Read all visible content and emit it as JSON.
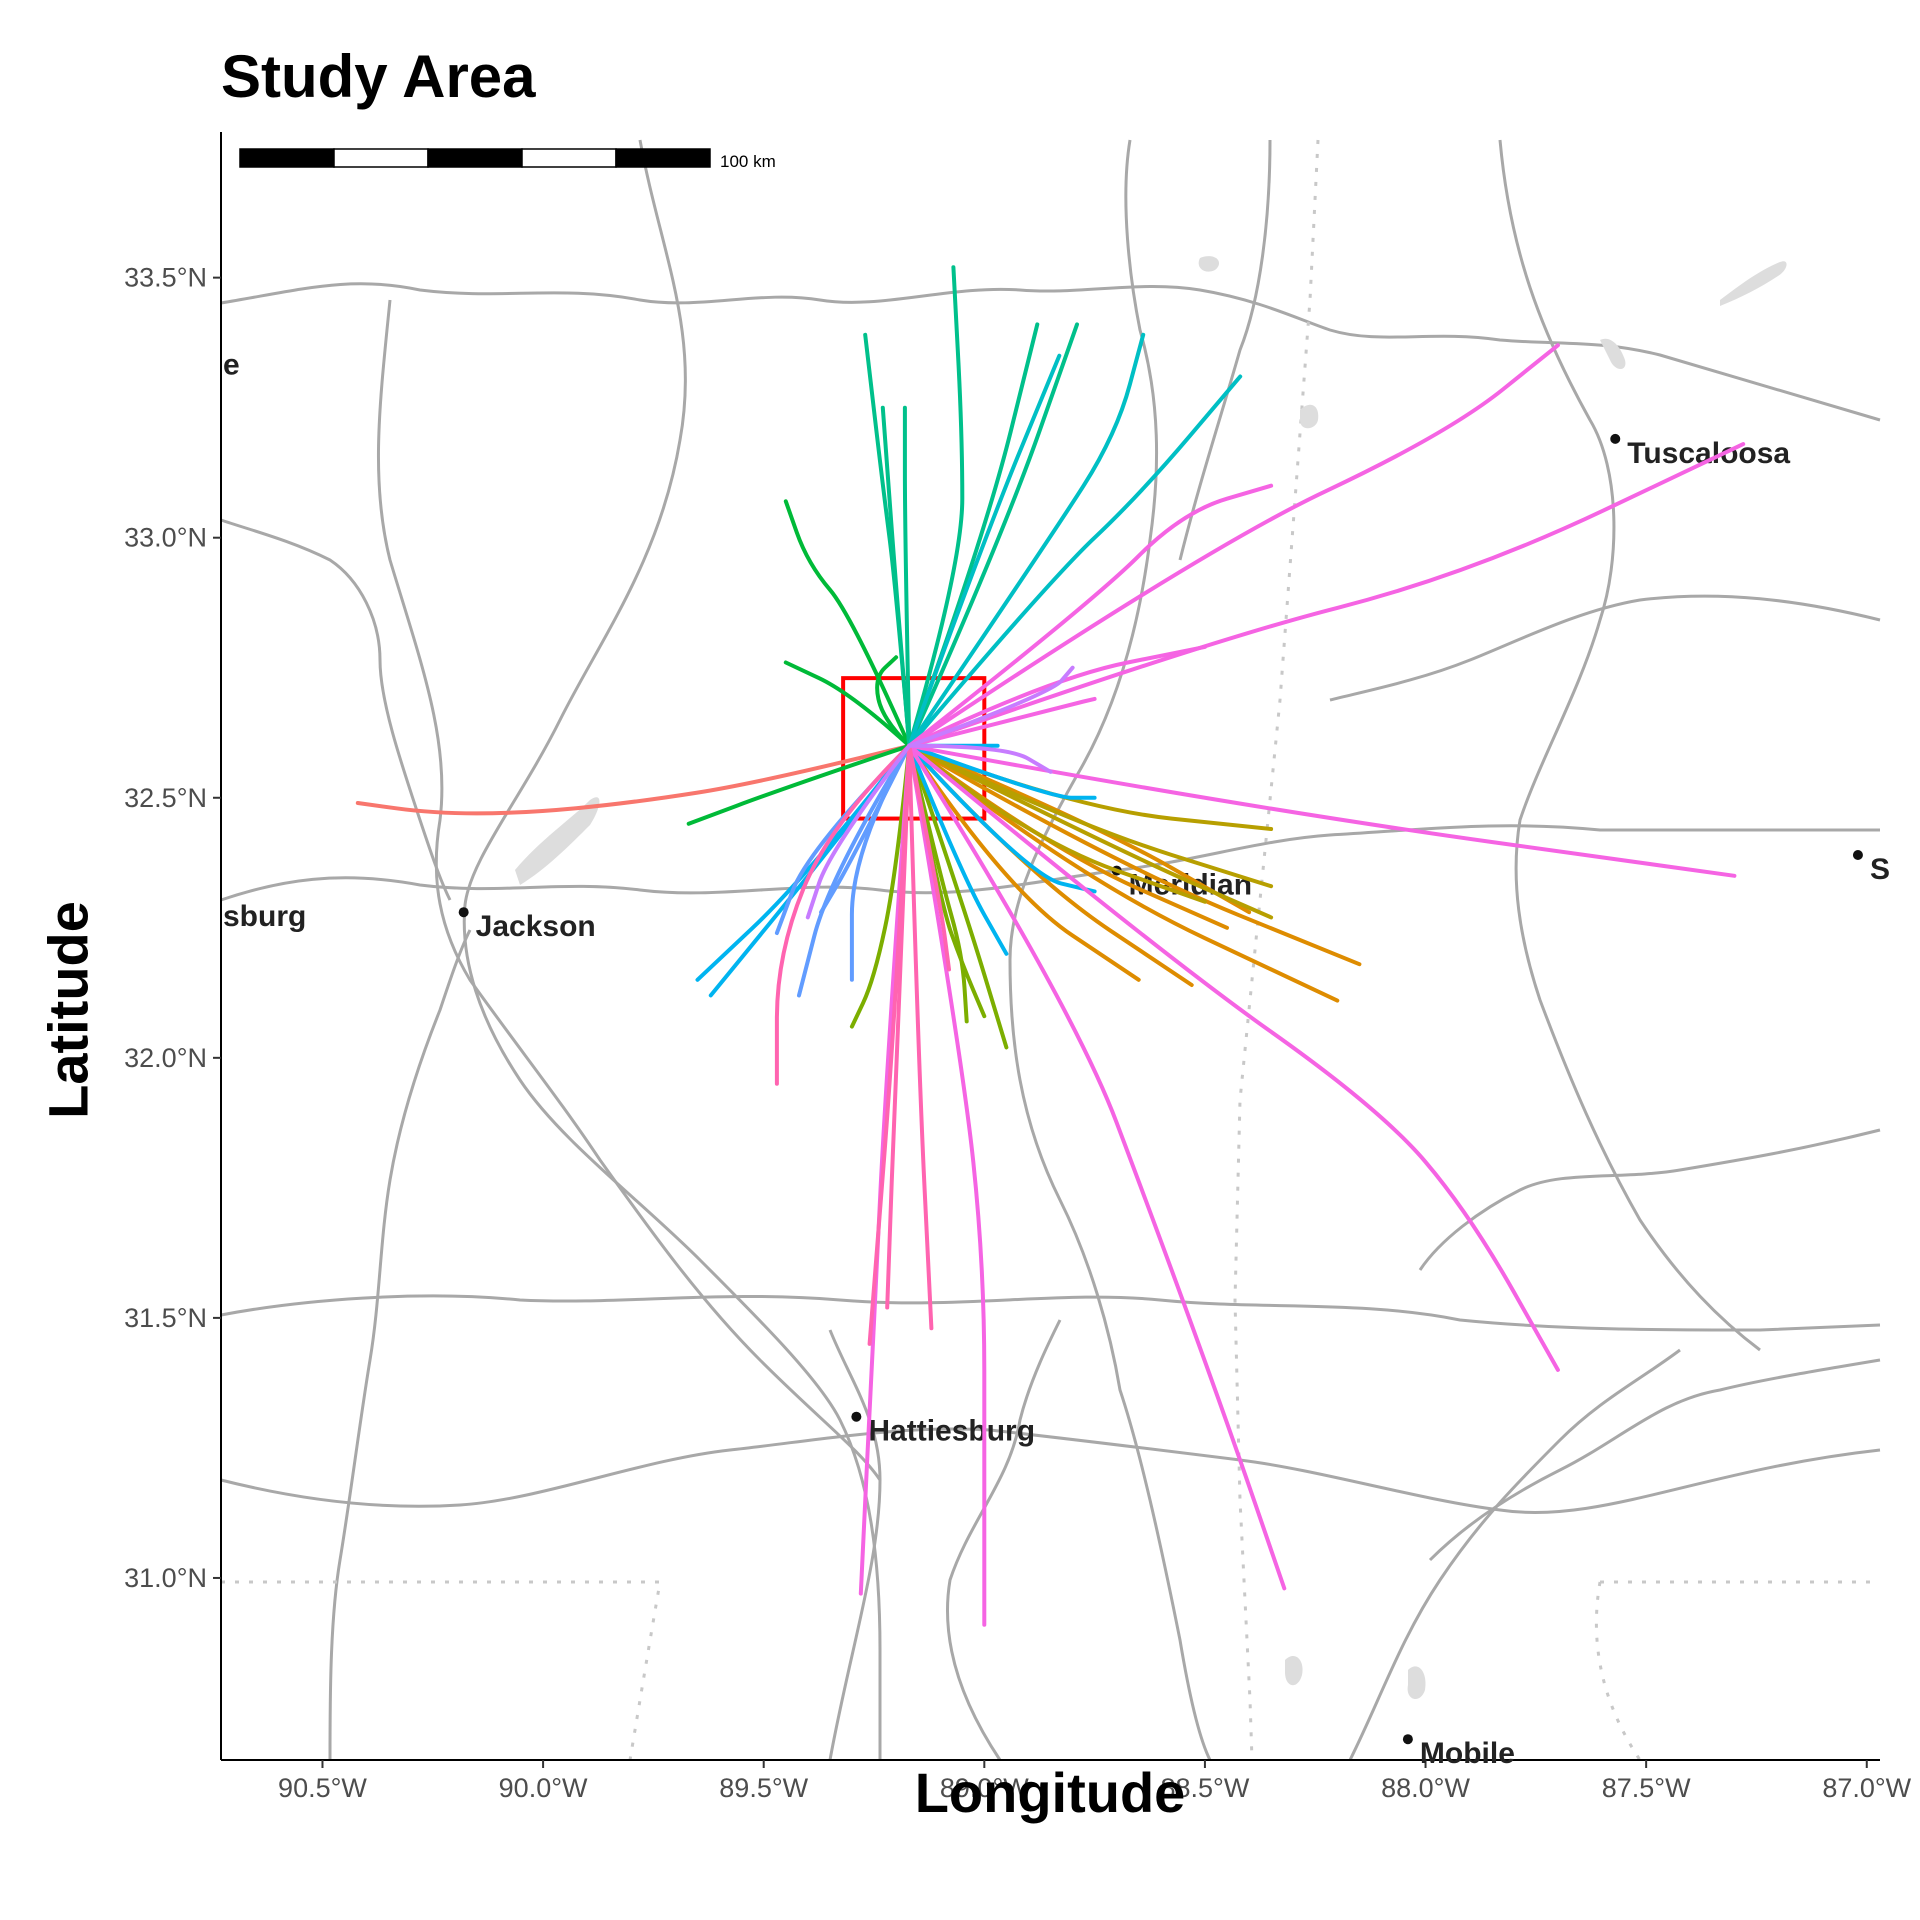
{
  "title": "Study Area",
  "x_axis_label": "Longitude",
  "y_axis_label": "Latitude",
  "x_ticks": [
    "90.5°W",
    "90.0°W",
    "89.5°W",
    "89.0°W",
    "88.5°W",
    "88.0°W",
    "87.5°W",
    "87.0°W"
  ],
  "y_ticks": [
    "33.5°N",
    "33.0°N",
    "32.5°N",
    "32.0°N",
    "31.5°N",
    "31.0°N"
  ],
  "scale_bar_label": "100 km",
  "cities": [
    {
      "name": "Jackson",
      "lon": -90.18,
      "lat": 32.28
    },
    {
      "name": "Meridian",
      "lon": -88.7,
      "lat": 32.36
    },
    {
      "name": "Hattiesburg",
      "lon": -89.29,
      "lat": 31.31
    },
    {
      "name": "Tuscaloosa",
      "lon": -87.57,
      "lat": 33.19
    },
    {
      "name": "Mobile",
      "lon": -88.04,
      "lat": 30.69
    },
    {
      "name": "sburg",
      "lon": -90.9,
      "lat": 32.3
    },
    {
      "name": "e",
      "lon": -90.9,
      "lat": 33.36
    },
    {
      "name": "S",
      "lon": -87.02,
      "lat": 32.39
    }
  ],
  "study_box": {
    "lon_min": -89.32,
    "lon_max": -89.0,
    "lat_min": 32.46,
    "lat_max": 32.73,
    "color": "#ff0000"
  },
  "origin": {
    "lon": -89.17,
    "lat": 32.6
  },
  "tracks": [
    {
      "color": "#F8766D",
      "points": [
        [
          -89.17,
          32.6
        ],
        [
          -89.5,
          32.53
        ],
        [
          -89.8,
          32.49
        ],
        [
          -90.05,
          32.47
        ],
        [
          -90.25,
          32.47
        ],
        [
          -90.42,
          32.49
        ]
      ]
    },
    {
      "color": "#DE8C00",
      "points": [
        [
          -89.17,
          32.6
        ],
        [
          -88.7,
          32.37
        ],
        [
          -88.15,
          32.18
        ]
      ]
    },
    {
      "color": "#DE8C00",
      "points": [
        [
          -89.17,
          32.6
        ],
        [
          -88.8,
          32.35
        ],
        [
          -88.2,
          32.11
        ]
      ]
    },
    {
      "color": "#DE8C00",
      "points": [
        [
          -89.17,
          32.6
        ],
        [
          -88.85,
          32.4
        ],
        [
          -88.45,
          32.25
        ]
      ]
    },
    {
      "color": "#DE8C00",
      "points": [
        [
          -89.17,
          32.6
        ],
        [
          -88.9,
          32.35
        ],
        [
          -88.53,
          32.14
        ]
      ]
    },
    {
      "color": "#DE8C00",
      "points": [
        [
          -89.17,
          32.6
        ],
        [
          -88.95,
          32.32
        ],
        [
          -88.65,
          32.15
        ]
      ]
    },
    {
      "color": "#DE8C00",
      "points": [
        [
          -89.17,
          32.6
        ],
        [
          -88.75,
          32.45
        ],
        [
          -88.4,
          32.28
        ]
      ]
    },
    {
      "color": "#B79F00",
      "points": [
        [
          -89.17,
          32.6
        ],
        [
          -88.8,
          32.48
        ],
        [
          -88.35,
          32.44
        ]
      ]
    },
    {
      "color": "#B79F00",
      "points": [
        [
          -89.17,
          32.6
        ],
        [
          -88.8,
          32.45
        ],
        [
          -88.35,
          32.33
        ]
      ]
    },
    {
      "color": "#B79F00",
      "points": [
        [
          -89.17,
          32.6
        ],
        [
          -88.7,
          32.4
        ],
        [
          -88.35,
          32.27
        ]
      ]
    },
    {
      "color": "#B79F00",
      "points": [
        [
          -89.17,
          32.6
        ],
        [
          -88.9,
          32.42
        ],
        [
          -88.5,
          32.3
        ]
      ]
    },
    {
      "color": "#7CAE00",
      "points": [
        [
          -89.17,
          32.6
        ],
        [
          -89.1,
          32.35
        ],
        [
          -89.05,
          32.2
        ],
        [
          -89.04,
          32.07
        ]
      ]
    },
    {
      "color": "#7CAE00",
      "points": [
        [
          -89.17,
          32.6
        ],
        [
          -89.05,
          32.3
        ],
        [
          -88.95,
          32.02
        ]
      ]
    },
    {
      "color": "#7CAE00",
      "points": [
        [
          -89.17,
          32.6
        ],
        [
          -89.2,
          32.35
        ],
        [
          -89.25,
          32.15
        ],
        [
          -89.3,
          32.06
        ]
      ]
    },
    {
      "color": "#7CAE00",
      "points": [
        [
          -89.17,
          32.6
        ],
        [
          -89.1,
          32.3
        ],
        [
          -89.05,
          32.18
        ],
        [
          -89.0,
          32.08
        ]
      ]
    },
    {
      "color": "#00BA38",
      "points": [
        [
          -89.17,
          32.6
        ],
        [
          -89.45,
          32.52
        ],
        [
          -89.67,
          32.45
        ]
      ]
    },
    {
      "color": "#00BA38",
      "points": [
        [
          -89.17,
          32.6
        ],
        [
          -89.3,
          32.7
        ],
        [
          -89.45,
          32.76
        ]
      ]
    },
    {
      "color": "#00BA38",
      "points": [
        [
          -89.17,
          32.6
        ],
        [
          -89.23,
          32.65
        ],
        [
          -89.25,
          32.73
        ],
        [
          -89.2,
          32.77
        ]
      ]
    },
    {
      "color": "#00BA38",
      "points": [
        [
          -89.17,
          32.6
        ],
        [
          -89.3,
          32.85
        ],
        [
          -89.4,
          32.95
        ],
        [
          -89.45,
          33.07
        ]
      ]
    },
    {
      "color": "#00C08B",
      "points": [
        [
          -89.17,
          32.6
        ],
        [
          -89.2,
          32.9
        ],
        [
          -89.23,
          33.1
        ],
        [
          -89.27,
          33.39
        ]
      ]
    },
    {
      "color": "#00C08B",
      "points": [
        [
          -89.17,
          32.6
        ],
        [
          -89.2,
          32.9
        ],
        [
          -89.23,
          33.25
        ]
      ]
    },
    {
      "color": "#00C08B",
      "points": [
        [
          -89.17,
          32.6
        ],
        [
          -89.18,
          33.0
        ],
        [
          -89.18,
          33.25
        ]
      ]
    },
    {
      "color": "#00C08B",
      "points": [
        [
          -89.17,
          32.6
        ],
        [
          -89.05,
          32.95
        ],
        [
          -89.05,
          33.2
        ],
        [
          -89.07,
          33.52
        ]
      ]
    },
    {
      "color": "#00C08B",
      "points": [
        [
          -89.17,
          32.6
        ],
        [
          -89.0,
          33.0
        ],
        [
          -88.88,
          33.41
        ]
      ]
    },
    {
      "color": "#00C08B",
      "points": [
        [
          -89.17,
          32.6
        ],
        [
          -88.96,
          33.0
        ],
        [
          -88.79,
          33.41
        ]
      ]
    },
    {
      "color": "#00BFC4",
      "points": [
        [
          -89.17,
          32.6
        ],
        [
          -88.85,
          33.0
        ],
        [
          -88.7,
          33.2
        ],
        [
          -88.64,
          33.39
        ]
      ]
    },
    {
      "color": "#00BFC4",
      "points": [
        [
          -89.17,
          32.6
        ],
        [
          -88.85,
          32.92
        ],
        [
          -88.65,
          33.08
        ],
        [
          -88.42,
          33.31
        ]
      ]
    },
    {
      "color": "#00BFC4",
      "points": [
        [
          -89.17,
          32.6
        ],
        [
          -89.0,
          33.0
        ],
        [
          -88.83,
          33.35
        ]
      ]
    },
    {
      "color": "#00B4F0",
      "points": [
        [
          -89.17,
          32.6
        ],
        [
          -89.4,
          32.35
        ],
        [
          -89.65,
          32.15
        ]
      ]
    },
    {
      "color": "#00B4F0",
      "points": [
        [
          -89.17,
          32.6
        ],
        [
          -89.35,
          32.4
        ],
        [
          -89.62,
          32.12
        ]
      ]
    },
    {
      "color": "#00B4F0",
      "points": [
        [
          -89.17,
          32.6
        ],
        [
          -88.9,
          32.35
        ],
        [
          -88.75,
          32.32
        ]
      ]
    },
    {
      "color": "#00B4F0",
      "points": [
        [
          -89.17,
          32.6
        ],
        [
          -89.05,
          32.35
        ],
        [
          -88.95,
          32.2
        ]
      ]
    },
    {
      "color": "#00B4F0",
      "points": [
        [
          -89.17,
          32.6
        ],
        [
          -89.02,
          32.6
        ],
        [
          -88.97,
          32.6
        ]
      ]
    },
    {
      "color": "#00B4F0",
      "points": [
        [
          -89.17,
          32.6
        ],
        [
          -88.85,
          32.5
        ],
        [
          -88.75,
          32.5
        ]
      ]
    },
    {
      "color": "#619CFF",
      "points": [
        [
          -89.17,
          32.6
        ],
        [
          -89.4,
          32.4
        ],
        [
          -89.47,
          32.24
        ]
      ]
    },
    {
      "color": "#619CFF",
      "points": [
        [
          -89.17,
          32.6
        ],
        [
          -89.3,
          32.4
        ],
        [
          -89.3,
          32.15
        ]
      ]
    },
    {
      "color": "#619CFF",
      "points": [
        [
          -89.17,
          32.6
        ],
        [
          -89.35,
          32.35
        ],
        [
          -89.42,
          32.12
        ]
      ]
    },
    {
      "color": "#619CFF",
      "points": [
        [
          -89.17,
          32.6
        ],
        [
          -89.3,
          32.38
        ],
        [
          -89.37,
          32.28
        ]
      ]
    },
    {
      "color": "#F564E3",
      "points": [
        [
          -89.17,
          32.6
        ],
        [
          -88.4,
          32.48
        ],
        [
          -87.3,
          32.35
        ]
      ]
    },
    {
      "color": "#F564E3",
      "points": [
        [
          -89.17,
          32.6
        ],
        [
          -88.5,
          32.98
        ],
        [
          -87.95,
          33.2
        ],
        [
          -87.7,
          33.37
        ]
      ]
    },
    {
      "color": "#F564E3",
      "points": [
        [
          -89.17,
          32.6
        ],
        [
          -88.5,
          32.8
        ],
        [
          -87.9,
          32.93
        ],
        [
          -87.28,
          33.18
        ]
      ]
    },
    {
      "color": "#F564E3",
      "points": [
        [
          -89.17,
          32.6
        ],
        [
          -88.75,
          32.88
        ],
        [
          -88.55,
          33.05
        ],
        [
          -88.35,
          33.1
        ]
      ]
    },
    {
      "color": "#F564E3",
      "points": [
        [
          -89.17,
          32.6
        ],
        [
          -88.85,
          32.73
        ],
        [
          -88.5,
          32.79
        ]
      ]
    },
    {
      "color": "#F564E3",
      "points": [
        [
          -89.17,
          32.6
        ],
        [
          -88.8,
          32.68
        ],
        [
          -88.75,
          32.69
        ]
      ]
    },
    {
      "color": "#F564E3",
      "points": [
        [
          -89.17,
          32.6
        ],
        [
          -88.6,
          32.2
        ],
        [
          -88.1,
          31.9
        ],
        [
          -87.9,
          31.7
        ],
        [
          -87.7,
          31.4
        ]
      ]
    },
    {
      "color": "#F564E3",
      "points": [
        [
          -89.17,
          32.6
        ],
        [
          -88.8,
          32.1
        ],
        [
          -88.6,
          31.65
        ],
        [
          -88.45,
          31.3
        ],
        [
          -88.32,
          30.98
        ]
      ]
    },
    {
      "color": "#F564E3",
      "points": [
        [
          -89.17,
          32.6
        ],
        [
          -89.05,
          32.0
        ],
        [
          -89.0,
          31.6
        ],
        [
          -89.0,
          31.2
        ],
        [
          -89.0,
          30.91
        ]
      ]
    },
    {
      "color": "#F564E3",
      "points": [
        [
          -89.17,
          32.6
        ],
        [
          -89.22,
          32.0
        ],
        [
          -89.25,
          31.5
        ],
        [
          -89.28,
          30.97
        ]
      ]
    },
    {
      "color": "#FF64B0",
      "points": [
        [
          -89.17,
          32.6
        ],
        [
          -89.2,
          32.0
        ],
        [
          -89.22,
          31.52
        ]
      ]
    },
    {
      "color": "#FF64B0",
      "points": [
        [
          -89.17,
          32.6
        ],
        [
          -89.2,
          32.1
        ],
        [
          -89.26,
          31.45
        ]
      ]
    },
    {
      "color": "#FF64B0",
      "points": [
        [
          -89.17,
          32.6
        ],
        [
          -89.15,
          32.0
        ],
        [
          -89.12,
          31.48
        ]
      ]
    },
    {
      "color": "#FF64B0",
      "points": [
        [
          -89.17,
          32.6
        ],
        [
          -89.35,
          32.45
        ],
        [
          -89.47,
          32.2
        ],
        [
          -89.47,
          31.95
        ]
      ]
    },
    {
      "color": "#FF64B0",
      "points": [
        [
          -89.17,
          32.6
        ],
        [
          -89.1,
          32.3
        ],
        [
          -89.08,
          32.17
        ]
      ]
    },
    {
      "color": "#C77CFF",
      "points": [
        [
          -89.17,
          32.6
        ],
        [
          -88.85,
          32.7
        ],
        [
          -88.8,
          32.75
        ]
      ]
    },
    {
      "color": "#C77CFF",
      "points": [
        [
          -89.17,
          32.6
        ],
        [
          -88.95,
          32.6
        ],
        [
          -88.85,
          32.55
        ]
      ]
    },
    {
      "color": "#C77CFF",
      "points": [
        [
          -89.17,
          32.6
        ],
        [
          -89.35,
          32.4
        ],
        [
          -89.4,
          32.27
        ]
      ]
    }
  ]
}
